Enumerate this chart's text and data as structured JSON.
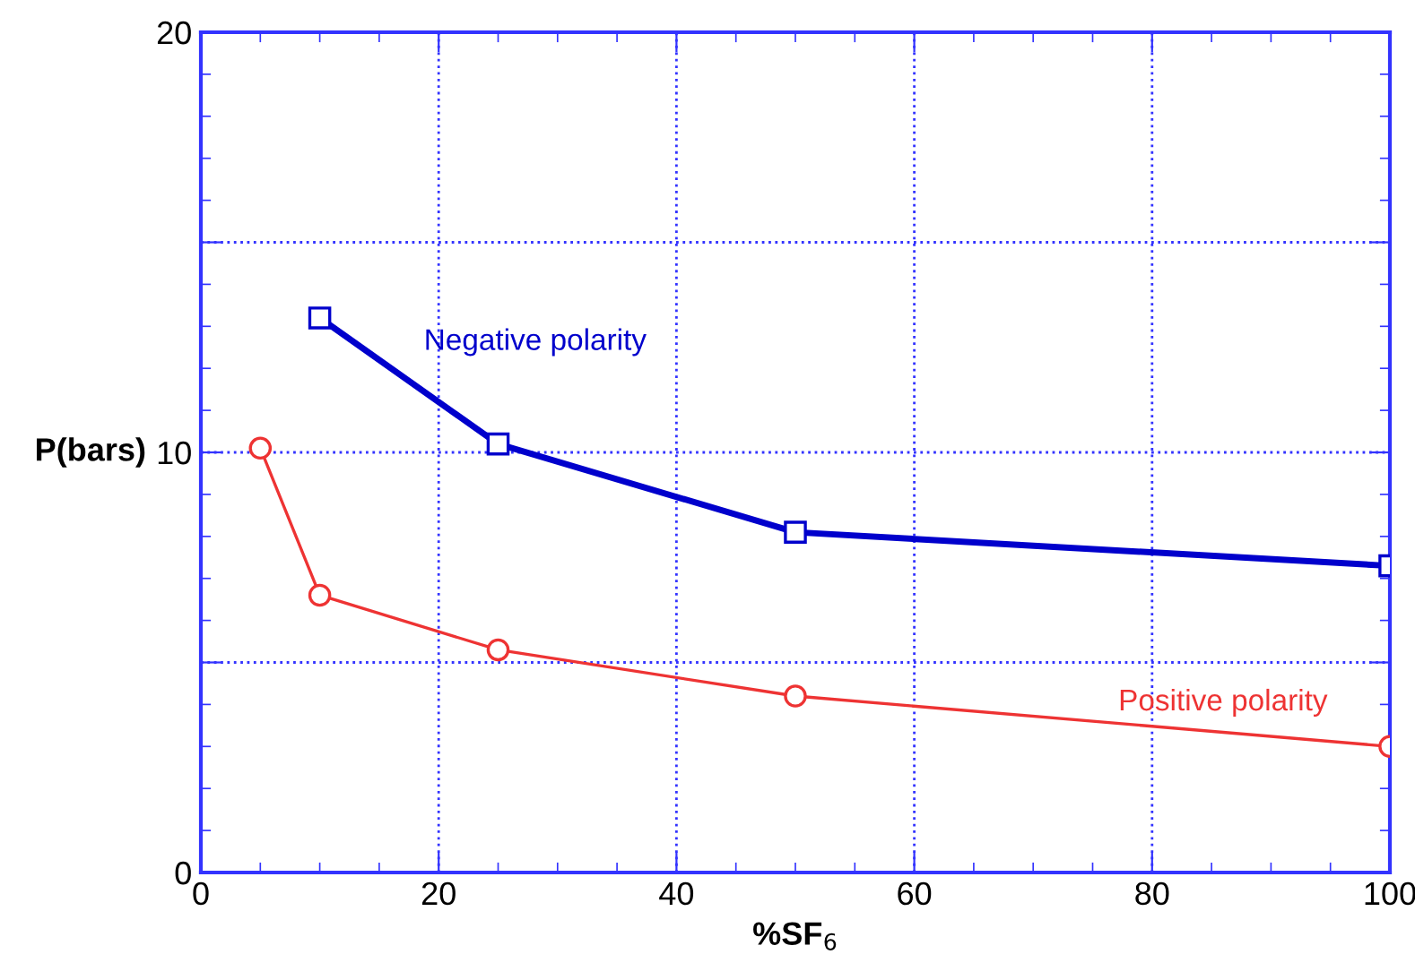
{
  "chart_data": {
    "type": "line",
    "xlabel": "%SF$_{6}$",
    "ylabel": "P(bars)",
    "xlim": [
      0,
      100
    ],
    "xticks": [
      0,
      20,
      40,
      60,
      80,
      100
    ],
    "ylim": [
      0,
      20
    ],
    "yticks": [
      0,
      {
        "value": 5,
        "label": null
      },
      10,
      {
        "value": 15,
        "label": null
      },
      20
    ],
    "grid": true,
    "line_style": "solid",
    "series": [
      {
        "name": "Negative polarity",
        "color": "#0000cc",
        "marker": "square",
        "x": [
          10,
          25,
          50,
          100
        ],
        "values": [
          13.2,
          10.2,
          8.1,
          7.3
        ]
      },
      {
        "name": "Positive polarity",
        "color": "#ee3333",
        "marker": "circle",
        "x": [
          5,
          10,
          25,
          50,
          100
        ],
        "values": [
          10.1,
          6.6,
          5.3,
          4.2,
          3.0
        ]
      }
    ]
  }
}
